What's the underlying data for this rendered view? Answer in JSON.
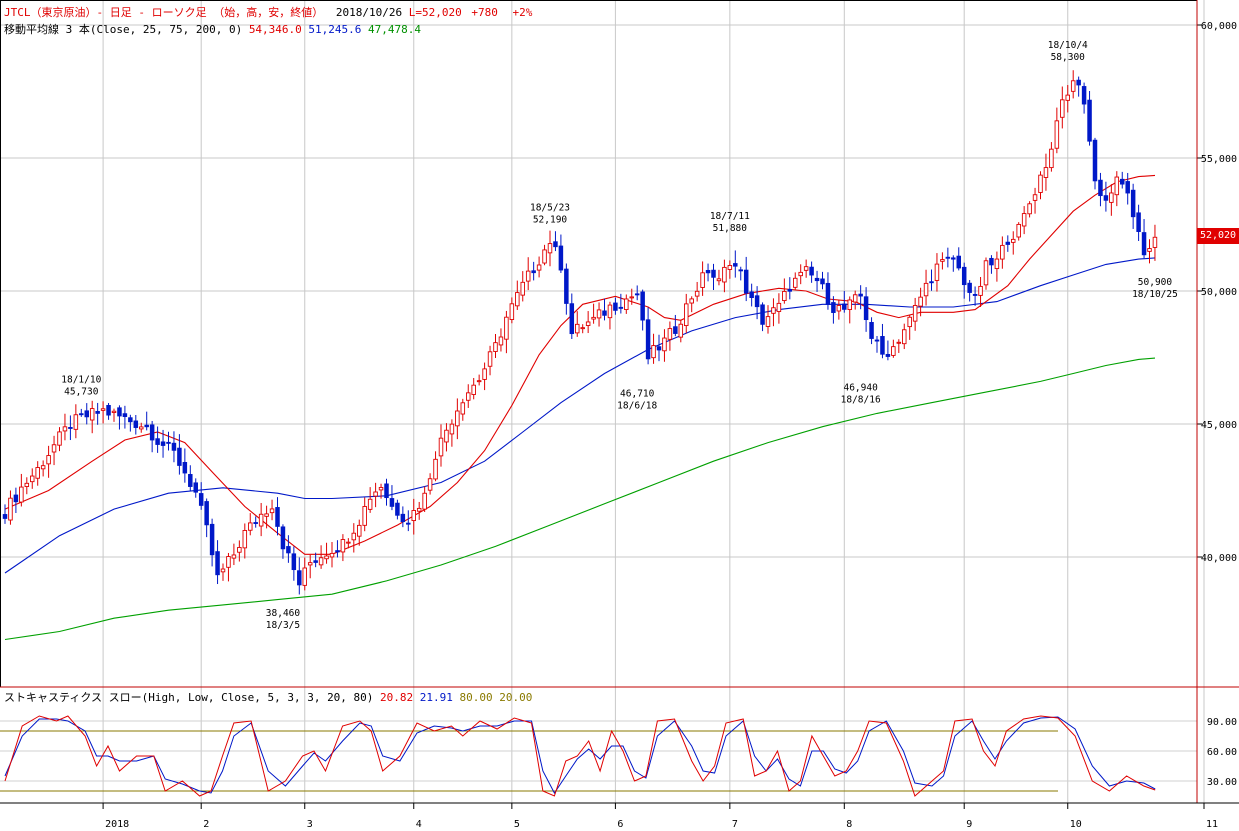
{
  "header": {
    "symbol_line": "JTCL（東京原油）- 日足 - ローソク足 （始，高，安，終値）",
    "date": "2018/10/26",
    "last": "L=52,020",
    "change": "+780",
    "change_pct": "+2%",
    "ma_label": "移動平均線 3 本(Close, 25, 75, 200, 0)",
    "ma25": "54,346.0",
    "ma75": "51,245.6",
    "ma200": "47,478.4"
  },
  "stoch_header": {
    "label": "ストキャスティクス スロー(High, Low, Close, 5, 3, 3, 20, 80)",
    "k": "20.82",
    "d": "21.91",
    "upper": "80.00",
    "lower": "20.00"
  },
  "last_price_label": "52,020",
  "colors": {
    "up": "#e00000",
    "down": "#0018c8",
    "ma25": "#e00000",
    "ma75": "#0018c8",
    "ma200": "#00a000",
    "stoch_k": "#e00000",
    "stoch_d": "#0018c8",
    "levels": "#8a7a00"
  },
  "chart_data": {
    "type": "candlestick",
    "price_axis": {
      "min": 35000,
      "max": 60000,
      "ticks": [
        "60,000",
        "55,000",
        "50,000",
        "45,000",
        "40,000"
      ],
      "tick_values": [
        60000,
        55000,
        50000,
        45000,
        40000
      ]
    },
    "months": [
      {
        "label": "2018",
        "day": 18
      },
      {
        "label": "2",
        "day": 36
      },
      {
        "label": "3",
        "day": 55
      },
      {
        "label": "4",
        "day": 75
      },
      {
        "label": "5",
        "day": 93
      },
      {
        "label": "6",
        "day": 112
      },
      {
        "label": "7",
        "day": 133
      },
      {
        "label": "8",
        "day": 154
      },
      {
        "label": "9",
        "day": 176
      },
      {
        "label": "10",
        "day": 195
      },
      {
        "label": "11",
        "day": 220
      }
    ],
    "ohlc_points": [
      [
        0,
        41700
      ],
      [
        3,
        42600
      ],
      [
        6,
        43300
      ],
      [
        9,
        44200
      ],
      [
        12,
        45000
      ],
      [
        15,
        45300
      ],
      [
        18,
        45500
      ],
      [
        22,
        45200
      ],
      [
        26,
        44900
      ],
      [
        28,
        44400
      ],
      [
        31,
        43900
      ],
      [
        33,
        43200
      ],
      [
        35,
        42400
      ],
      [
        37,
        41000
      ],
      [
        39,
        39200
      ],
      [
        42,
        40100
      ],
      [
        44,
        40900
      ],
      [
        47,
        41600
      ],
      [
        49,
        42000
      ],
      [
        51,
        40500
      ],
      [
        54,
        39000
      ],
      [
        56,
        39800
      ],
      [
        59,
        40200
      ],
      [
        62,
        40500
      ],
      [
        65,
        41400
      ],
      [
        67,
        42300
      ],
      [
        69,
        42700
      ],
      [
        71,
        41900
      ],
      [
        74,
        41400
      ],
      [
        77,
        42300
      ],
      [
        79,
        43900
      ],
      [
        81,
        44800
      ],
      [
        84,
        46000
      ],
      [
        87,
        46700
      ],
      [
        90,
        47900
      ],
      [
        92,
        49000
      ],
      [
        95,
        50200
      ],
      [
        98,
        51200
      ],
      [
        100,
        51900
      ],
      [
        102,
        51000
      ],
      [
        104,
        48400
      ],
      [
        106,
        48700
      ],
      [
        108,
        48900
      ],
      [
        111,
        49400
      ],
      [
        114,
        49700
      ],
      [
        116,
        49900
      ],
      [
        118,
        47500
      ],
      [
        121,
        48100
      ],
      [
        123,
        48600
      ],
      [
        126,
        49800
      ],
      [
        129,
        50800
      ],
      [
        131,
        50300
      ],
      [
        133,
        51200
      ],
      [
        135,
        50600
      ],
      [
        137,
        49600
      ],
      [
        139,
        48900
      ],
      [
        142,
        49400
      ],
      [
        144,
        50200
      ],
      [
        147,
        50700
      ],
      [
        149,
        50400
      ],
      [
        152,
        49400
      ],
      [
        154,
        49300
      ],
      [
        157,
        49800
      ],
      [
        159,
        48300
      ],
      [
        161,
        47600
      ],
      [
        163,
        47900
      ],
      [
        166,
        48900
      ],
      [
        169,
        50200
      ],
      [
        171,
        50900
      ],
      [
        174,
        51200
      ],
      [
        176,
        50400
      ],
      [
        178,
        49600
      ],
      [
        180,
        50900
      ],
      [
        182,
        51100
      ],
      [
        184,
        52000
      ],
      [
        186,
        52300
      ],
      [
        188,
        53300
      ],
      [
        190,
        54300
      ],
      [
        192,
        55300
      ],
      [
        193,
        56600
      ],
      [
        195,
        57300
      ],
      [
        196,
        58000
      ],
      [
        198,
        57200
      ],
      [
        200,
        54100
      ],
      [
        202,
        53400
      ],
      [
        204,
        54100
      ],
      [
        206,
        53800
      ],
      [
        207,
        52600
      ],
      [
        209,
        51400
      ],
      [
        211,
        52020
      ]
    ],
    "ma25_points": [
      [
        0,
        41800
      ],
      [
        8,
        42500
      ],
      [
        16,
        43600
      ],
      [
        22,
        44400
      ],
      [
        28,
        44700
      ],
      [
        33,
        44300
      ],
      [
        38,
        43200
      ],
      [
        44,
        41900
      ],
      [
        50,
        40900
      ],
      [
        55,
        40100
      ],
      [
        60,
        40100
      ],
      [
        66,
        40600
      ],
      [
        72,
        41200
      ],
      [
        78,
        41900
      ],
      [
        83,
        42800
      ],
      [
        88,
        44000
      ],
      [
        93,
        45700
      ],
      [
        98,
        47600
      ],
      [
        102,
        48700
      ],
      [
        106,
        49500
      ],
      [
        112,
        49800
      ],
      [
        118,
        49400
      ],
      [
        121,
        49000
      ],
      [
        124,
        48900
      ],
      [
        130,
        49500
      ],
      [
        136,
        49900
      ],
      [
        142,
        50100
      ],
      [
        147,
        50000
      ],
      [
        151,
        49700
      ],
      [
        156,
        49600
      ],
      [
        160,
        49200
      ],
      [
        164,
        49000
      ],
      [
        168,
        49200
      ],
      [
        174,
        49200
      ],
      [
        178,
        49300
      ],
      [
        184,
        50200
      ],
      [
        188,
        51200
      ],
      [
        192,
        52100
      ],
      [
        196,
        53000
      ],
      [
        200,
        53600
      ],
      [
        204,
        54100
      ],
      [
        208,
        54300
      ],
      [
        211,
        54346
      ]
    ],
    "ma75_points": [
      [
        0,
        39400
      ],
      [
        10,
        40800
      ],
      [
        20,
        41800
      ],
      [
        30,
        42400
      ],
      [
        40,
        42600
      ],
      [
        50,
        42400
      ],
      [
        55,
        42200
      ],
      [
        60,
        42200
      ],
      [
        70,
        42300
      ],
      [
        80,
        42800
      ],
      [
        88,
        43600
      ],
      [
        95,
        44700
      ],
      [
        102,
        45800
      ],
      [
        110,
        46900
      ],
      [
        118,
        47800
      ],
      [
        126,
        48500
      ],
      [
        134,
        49000
      ],
      [
        142,
        49300
      ],
      [
        150,
        49500
      ],
      [
        158,
        49500
      ],
      [
        166,
        49400
      ],
      [
        174,
        49400
      ],
      [
        182,
        49600
      ],
      [
        190,
        50200
      ],
      [
        196,
        50600
      ],
      [
        202,
        51000
      ],
      [
        208,
        51200
      ],
      [
        211,
        51245.6
      ]
    ],
    "ma200_points": [
      [
        0,
        36900
      ],
      [
        10,
        37200
      ],
      [
        20,
        37700
      ],
      [
        30,
        38000
      ],
      [
        40,
        38200
      ],
      [
        50,
        38400
      ],
      [
        60,
        38600
      ],
      [
        70,
        39100
      ],
      [
        80,
        39700
      ],
      [
        90,
        40400
      ],
      [
        100,
        41200
      ],
      [
        110,
        42000
      ],
      [
        120,
        42800
      ],
      [
        130,
        43600
      ],
      [
        140,
        44300
      ],
      [
        150,
        44900
      ],
      [
        160,
        45400
      ],
      [
        170,
        45800
      ],
      [
        180,
        46200
      ],
      [
        190,
        46600
      ],
      [
        196,
        46900
      ],
      [
        202,
        47200
      ],
      [
        208,
        47430
      ],
      [
        211,
        47478.4
      ]
    ],
    "annotations": [
      {
        "day": 14,
        "price": 45730,
        "lines": [
          "18/1/10",
          "45,730"
        ],
        "pos": "above"
      },
      {
        "day": 51,
        "price": 38460,
        "lines": [
          "38,460",
          "18/3/5"
        ],
        "pos": "below"
      },
      {
        "day": 100,
        "price": 52190,
        "lines": [
          "18/5/23",
          "52,190"
        ],
        "pos": "above"
      },
      {
        "day": 116,
        "price": 46710,
        "lines": [
          "46,710",
          "18/6/18"
        ],
        "pos": "below"
      },
      {
        "day": 133,
        "price": 51880,
        "lines": [
          "18/7/11",
          "51,880"
        ],
        "pos": "above"
      },
      {
        "day": 157,
        "price": 46940,
        "lines": [
          "46,940",
          "18/8/16"
        ],
        "pos": "below"
      },
      {
        "day": 195,
        "price": 58300,
        "lines": [
          "18/10/4",
          "58,300"
        ],
        "pos": "above"
      },
      {
        "day": 211,
        "price": 50900,
        "lines": [
          "50,900",
          "18/10/25"
        ],
        "pos": "below"
      }
    ],
    "stochastic": {
      "y_ticks": [
        "90.00",
        "60.00",
        "30.00"
      ],
      "tick_values": [
        90,
        60,
        30
      ],
      "levels": [
        80,
        20
      ],
      "k_points": [
        [
          0,
          30
        ],
        [
          3,
          85
        ],
        [
          6,
          95
        ],
        [
          9,
          90
        ],
        [
          11,
          95
        ],
        [
          14,
          75
        ],
        [
          16,
          45
        ],
        [
          18,
          65
        ],
        [
          20,
          40
        ],
        [
          23,
          55
        ],
        [
          26,
          55
        ],
        [
          28,
          20
        ],
        [
          31,
          30
        ],
        [
          34,
          15
        ],
        [
          36,
          20
        ],
        [
          38,
          55
        ],
        [
          40,
          88
        ],
        [
          43,
          90
        ],
        [
          46,
          20
        ],
        [
          49,
          30
        ],
        [
          52,
          55
        ],
        [
          54,
          60
        ],
        [
          56,
          40
        ],
        [
          59,
          85
        ],
        [
          62,
          90
        ],
        [
          64,
          80
        ],
        [
          66,
          40
        ],
        [
          69,
          55
        ],
        [
          72,
          88
        ],
        [
          75,
          80
        ],
        [
          78,
          85
        ],
        [
          80,
          75
        ],
        [
          83,
          90
        ],
        [
          86,
          82
        ],
        [
          89,
          93
        ],
        [
          92,
          88
        ],
        [
          94,
          20
        ],
        [
          96,
          15
        ],
        [
          98,
          50
        ],
        [
          100,
          55
        ],
        [
          102,
          70
        ],
        [
          104,
          40
        ],
        [
          106,
          80
        ],
        [
          108,
          60
        ],
        [
          110,
          30
        ],
        [
          112,
          35
        ],
        [
          114,
          90
        ],
        [
          117,
          92
        ],
        [
          120,
          50
        ],
        [
          122,
          30
        ],
        [
          124,
          45
        ],
        [
          126,
          88
        ],
        [
          129,
          92
        ],
        [
          131,
          35
        ],
        [
          133,
          40
        ],
        [
          135,
          60
        ],
        [
          137,
          20
        ],
        [
          139,
          30
        ],
        [
          141,
          75
        ],
        [
          143,
          55
        ],
        [
          145,
          35
        ],
        [
          147,
          40
        ],
        [
          149,
          60
        ],
        [
          151,
          90
        ],
        [
          154,
          88
        ],
        [
          157,
          50
        ],
        [
          159,
          15
        ],
        [
          162,
          30
        ],
        [
          164,
          40
        ],
        [
          166,
          90
        ],
        [
          169,
          92
        ],
        [
          171,
          60
        ],
        [
          173,
          45
        ],
        [
          175,
          80
        ],
        [
          178,
          92
        ],
        [
          181,
          95
        ],
        [
          184,
          93
        ],
        [
          187,
          75
        ],
        [
          190,
          30
        ],
        [
          193,
          20
        ],
        [
          196,
          35
        ],
        [
          199,
          25
        ],
        [
          201,
          21
        ]
      ],
      "d_points": [
        [
          0,
          35
        ],
        [
          3,
          75
        ],
        [
          6,
          92
        ],
        [
          9,
          92
        ],
        [
          11,
          90
        ],
        [
          14,
          80
        ],
        [
          16,
          55
        ],
        [
          18,
          55
        ],
        [
          20,
          50
        ],
        [
          23,
          50
        ],
        [
          26,
          55
        ],
        [
          28,
          32
        ],
        [
          31,
          27
        ],
        [
          34,
          20
        ],
        [
          36,
          18
        ],
        [
          38,
          40
        ],
        [
          40,
          75
        ],
        [
          43,
          88
        ],
        [
          46,
          40
        ],
        [
          49,
          25
        ],
        [
          52,
          45
        ],
        [
          54,
          58
        ],
        [
          56,
          50
        ],
        [
          59,
          70
        ],
        [
          62,
          88
        ],
        [
          64,
          85
        ],
        [
          66,
          55
        ],
        [
          69,
          50
        ],
        [
          72,
          78
        ],
        [
          75,
          85
        ],
        [
          78,
          83
        ],
        [
          80,
          80
        ],
        [
          83,
          85
        ],
        [
          86,
          85
        ],
        [
          89,
          90
        ],
        [
          92,
          90
        ],
        [
          94,
          40
        ],
        [
          96,
          18
        ],
        [
          98,
          35
        ],
        [
          100,
          52
        ],
        [
          102,
          62
        ],
        [
          104,
          52
        ],
        [
          106,
          65
        ],
        [
          108,
          65
        ],
        [
          110,
          40
        ],
        [
          112,
          33
        ],
        [
          114,
          75
        ],
        [
          117,
          90
        ],
        [
          120,
          65
        ],
        [
          122,
          40
        ],
        [
          124,
          38
        ],
        [
          126,
          75
        ],
        [
          129,
          90
        ],
        [
          131,
          55
        ],
        [
          133,
          40
        ],
        [
          135,
          52
        ],
        [
          137,
          32
        ],
        [
          139,
          25
        ],
        [
          141,
          60
        ],
        [
          143,
          60
        ],
        [
          145,
          42
        ],
        [
          147,
          38
        ],
        [
          149,
          50
        ],
        [
          151,
          80
        ],
        [
          154,
          90
        ],
        [
          157,
          60
        ],
        [
          159,
          28
        ],
        [
          162,
          25
        ],
        [
          164,
          35
        ],
        [
          166,
          75
        ],
        [
          169,
          90
        ],
        [
          171,
          70
        ],
        [
          173,
          52
        ],
        [
          175,
          70
        ],
        [
          178,
          88
        ],
        [
          181,
          93
        ],
        [
          184,
          94
        ],
        [
          187,
          82
        ],
        [
          190,
          45
        ],
        [
          193,
          25
        ],
        [
          196,
          30
        ],
        [
          199,
          28
        ],
        [
          201,
          22
        ]
      ]
    }
  }
}
